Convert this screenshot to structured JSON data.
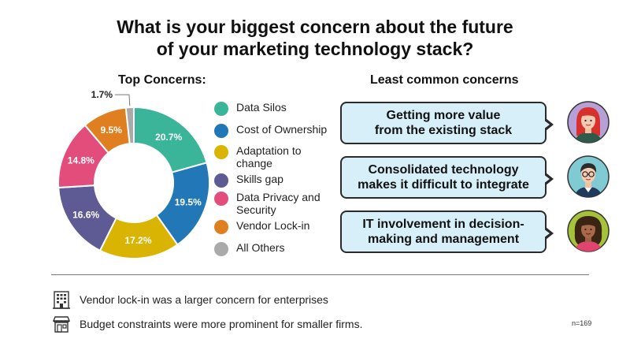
{
  "title": {
    "line1": "What is your biggest concern about the future",
    "line2": "of your marketing technology stack?"
  },
  "sections": {
    "top": "Top Concerns:",
    "least": "Least common concerns"
  },
  "chart_data": {
    "type": "pie",
    "variant": "donut",
    "title": "Top Concerns:",
    "categories": [
      "Data Silos",
      "Cost of Ownership",
      "Adaptation to change",
      "Skills gap",
      "Data Privacy and Security",
      "Vendor Lock-in",
      "All Others"
    ],
    "values": [
      20.7,
      19.5,
      17.2,
      16.6,
      14.8,
      9.5,
      1.7
    ],
    "value_labels": [
      "20.7%",
      "19.5%",
      "17.2%",
      "16.6%",
      "14.8%",
      "9.5%",
      "1.7%"
    ],
    "colors": [
      "#3bb59a",
      "#2278b6",
      "#dab402",
      "#5d5a94",
      "#e24d7c",
      "#df7f20",
      "#aaaaaa"
    ],
    "legend_position": "right"
  },
  "legend": [
    {
      "lines": [
        "Data Silos"
      ],
      "color": "#3bb59a"
    },
    {
      "lines": [
        "Cost of Ownership"
      ],
      "color": "#2278b6"
    },
    {
      "lines": [
        "Adaptation to",
        "change"
      ],
      "color": "#dab402"
    },
    {
      "lines": [
        "Skills gap"
      ],
      "color": "#5d5a94"
    },
    {
      "lines": [
        "Data Privacy and",
        "Security"
      ],
      "color": "#e24d7c"
    },
    {
      "lines": [
        "Vendor Lock-in"
      ],
      "color": "#df7f20"
    },
    {
      "lines": [
        "All Others"
      ],
      "color": "#aaaaaa"
    }
  ],
  "least_common": [
    {
      "line1": "Getting more value",
      "line2": "from the existing stack"
    },
    {
      "line1": "Consolidated technology",
      "line2": "makes it difficult to integrate"
    },
    {
      "line1": "IT involvement in decision-",
      "line2": "making and management"
    }
  ],
  "notes": [
    {
      "icon": "office-building-icon",
      "text": "Vendor lock-in was a larger concern for enterprises"
    },
    {
      "icon": "storefront-icon",
      "text": "Budget constraints were more prominent for smaller firms."
    }
  ],
  "sample_size": "n=169",
  "colors": {
    "bubble_fill": "#d7eff8",
    "bubble_border": "#2a2a2a"
  }
}
